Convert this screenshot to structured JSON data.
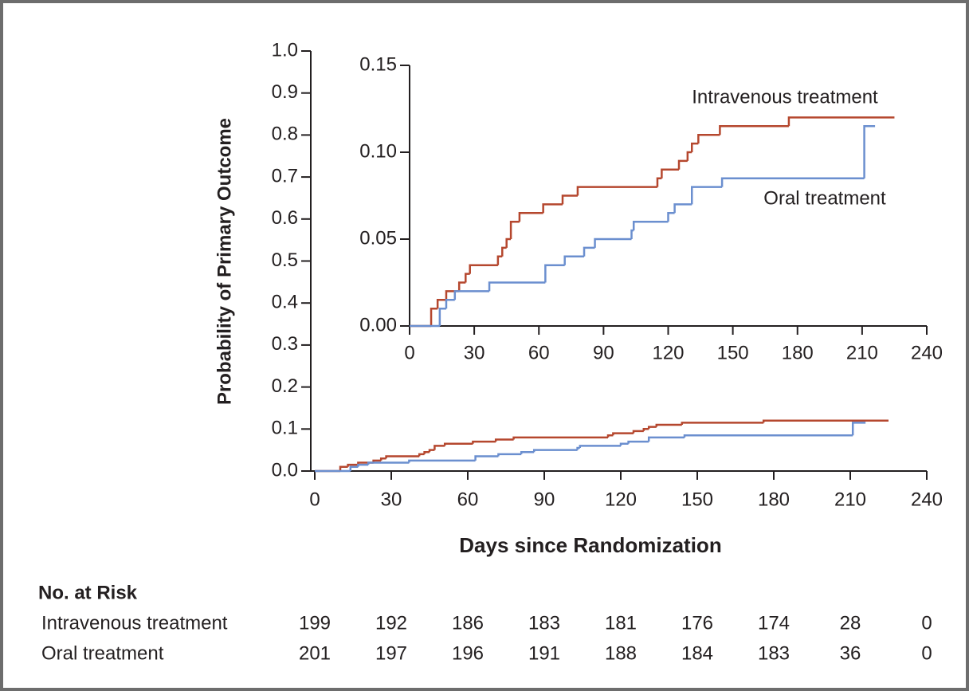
{
  "chart_data": [
    {
      "type": "step",
      "y_label": "Probability of Primary Outcome",
      "x_label": "Days since Randomization",
      "xlim": [
        0,
        240
      ],
      "xticks": [
        0,
        30,
        60,
        90,
        120,
        150,
        180,
        210,
        240
      ],
      "ylim": [
        0,
        1
      ],
      "yticks": [
        {
          "value": 0,
          "label": "0.0"
        },
        0.1,
        0.2,
        0.3,
        0.4,
        0.5,
        0.6,
        0.7,
        0.8,
        0.9,
        {
          "value": 1,
          "label": "1.0"
        }
      ],
      "series": [
        {
          "color": "#b5472e",
          "x": [
            0,
            10,
            13,
            17,
            23,
            26,
            28,
            41,
            43,
            45,
            47,
            51,
            62,
            71,
            78,
            115,
            117,
            125,
            129,
            131,
            134,
            144,
            176,
            225
          ],
          "values": [
            0,
            0.01,
            0.015,
            0.02,
            0.025,
            0.03,
            0.035,
            0.04,
            0.045,
            0.05,
            0.06,
            0.065,
            0.07,
            0.075,
            0.08,
            0.085,
            0.09,
            0.095,
            0.1,
            0.105,
            0.11,
            0.115,
            0.12,
            0.12
          ]
        },
        {
          "color": "#6b8fcf",
          "x": [
            0,
            14,
            17,
            21,
            37,
            63,
            72,
            81,
            86,
            103,
            104,
            120,
            123,
            131,
            145,
            211,
            216
          ],
          "values": [
            0,
            0.01,
            0.015,
            0.02,
            0.025,
            0.035,
            0.04,
            0.045,
            0.05,
            0.055,
            0.06,
            0.065,
            0.07,
            0.08,
            0.085,
            0.115,
            0.115
          ]
        }
      ]
    },
    {
      "type": "step",
      "xlim": [
        0,
        240
      ],
      "xticks": [
        0,
        30,
        60,
        90,
        120,
        150,
        180,
        210,
        240
      ],
      "ylim": [
        0,
        0.15
      ],
      "yticks": [
        {
          "value": 0,
          "label": "0.00"
        },
        {
          "value": 0.05,
          "label": "0.05"
        },
        {
          "value": 0.1,
          "label": "0.10"
        },
        {
          "value": 0.15,
          "label": "0.15"
        }
      ],
      "series": [
        {
          "name": "Intravenous treatment",
          "color": "#b5472e",
          "x": [
            0,
            10,
            13,
            17,
            23,
            26,
            28,
            41,
            43,
            45,
            47,
            51,
            62,
            71,
            78,
            115,
            117,
            125,
            129,
            131,
            134,
            144,
            176,
            225
          ],
          "values": [
            0,
            0.01,
            0.015,
            0.02,
            0.025,
            0.03,
            0.035,
            0.04,
            0.045,
            0.05,
            0.06,
            0.065,
            0.07,
            0.075,
            0.08,
            0.085,
            0.09,
            0.095,
            0.1,
            0.105,
            0.11,
            0.115,
            0.12,
            0.12
          ]
        },
        {
          "name": "Oral treatment",
          "color": "#6b8fcf",
          "x": [
            0,
            14,
            17,
            21,
            37,
            63,
            72,
            81,
            86,
            103,
            104,
            120,
            123,
            131,
            145,
            211,
            216
          ],
          "values": [
            0,
            0.01,
            0.015,
            0.02,
            0.025,
            0.035,
            0.04,
            0.045,
            0.05,
            0.055,
            0.06,
            0.065,
            0.07,
            0.08,
            0.085,
            0.115,
            0.115
          ]
        }
      ]
    }
  ],
  "risk_table": {
    "title": "No. at Risk",
    "rows": [
      {
        "label": "Intravenous treatment",
        "values": [
          199,
          192,
          186,
          183,
          181,
          176,
          174,
          28,
          0
        ]
      },
      {
        "label": "Oral treatment",
        "values": [
          201,
          197,
          196,
          191,
          188,
          184,
          183,
          36,
          0
        ]
      }
    ]
  }
}
